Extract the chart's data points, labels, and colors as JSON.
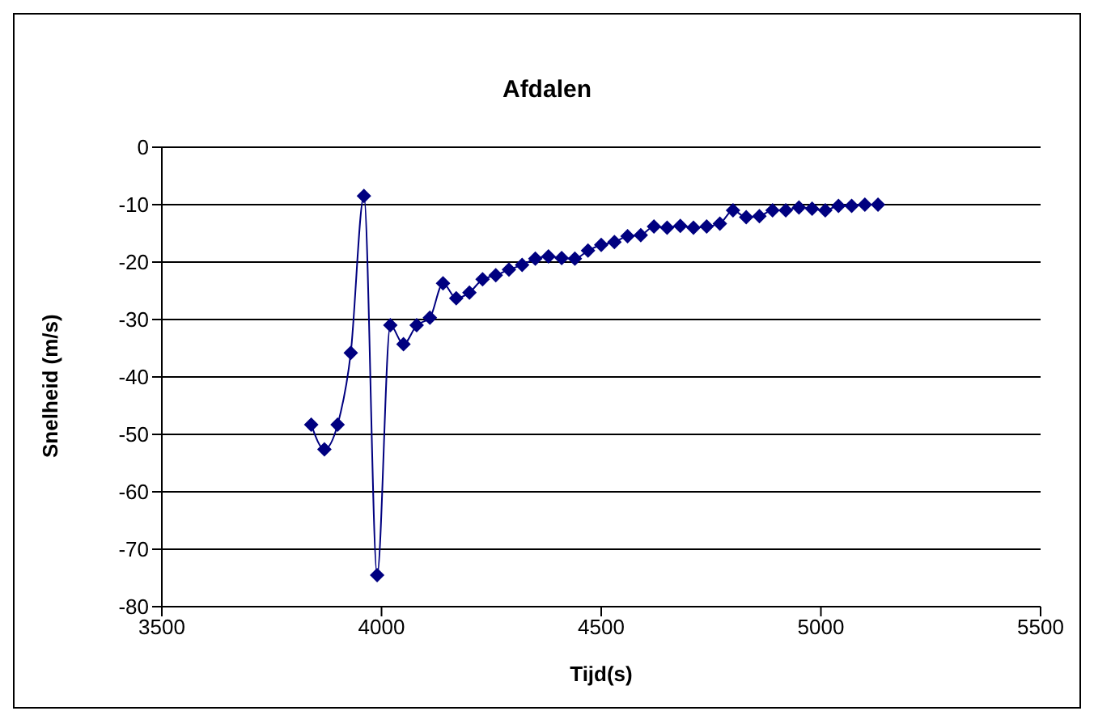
{
  "chart_data": {
    "type": "line",
    "title": "Afdalen",
    "xlabel": "Tijd(s)",
    "ylabel": "Snelheid (m/s)",
    "x": [
      3840,
      3870,
      3900,
      3930,
      3960,
      3990,
      4020,
      4050,
      4080,
      4110,
      4140,
      4170,
      4200,
      4230,
      4260,
      4290,
      4320,
      4350,
      4380,
      4410,
      4440,
      4470,
      4500,
      4530,
      4560,
      4590,
      4620,
      4650,
      4680,
      4710,
      4740,
      4770,
      4800,
      4830,
      4860,
      4890,
      4920,
      4950,
      4980,
      5010,
      5040,
      5070,
      5100,
      5130
    ],
    "series": [
      {
        "color": "#000080",
        "values": [
          -48.3,
          -52.6,
          -48.3,
          -35.8,
          -8.5,
          -74.5,
          -31,
          -34.3,
          -31,
          -29.7,
          -23.7,
          -26.3,
          -25.3,
          -23,
          -22.3,
          -21.3,
          -20.5,
          -19.4,
          -19,
          -19.3,
          -19.4,
          -18,
          -17,
          -16.5,
          -15.5,
          -15.3,
          -13.8,
          -14,
          -13.7,
          -14,
          -13.8,
          -13.3,
          -11,
          -12.2,
          -12,
          -11,
          -11,
          -10.5,
          -10.7,
          -11,
          -10.2,
          -10.2,
          -10,
          -10
        ]
      }
    ],
    "xlim": [
      3500,
      5500
    ],
    "xticks": [
      3500,
      4000,
      4500,
      5000,
      5500
    ],
    "ylim": [
      -80,
      0
    ],
    "yticks": [
      -80,
      -70,
      -60,
      -50,
      -40,
      -30,
      -20,
      -10,
      0
    ],
    "grid": "y",
    "legend": false,
    "marker": "diamond",
    "line_style": "solid"
  }
}
